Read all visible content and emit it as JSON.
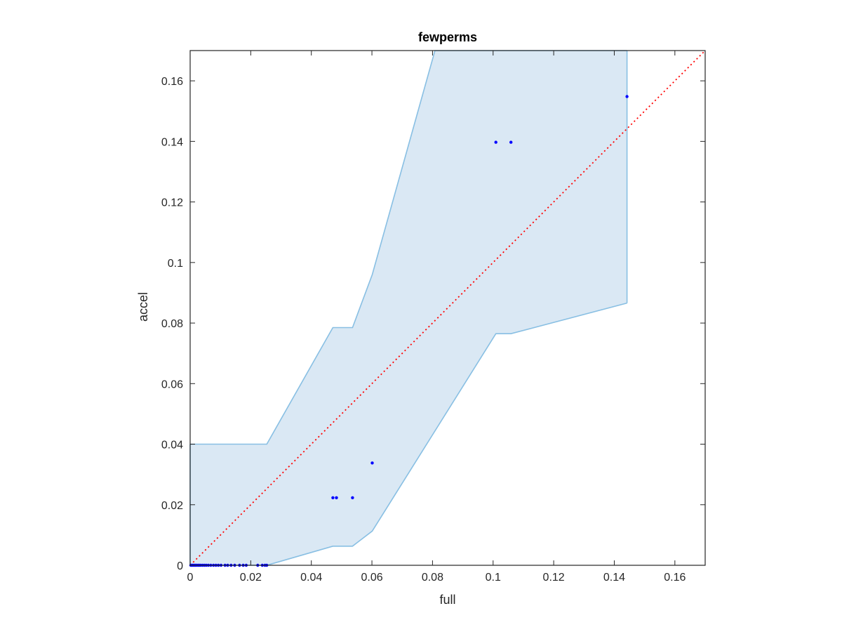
{
  "chart_data": {
    "type": "scatter",
    "title": "fewperms",
    "xlabel": "full",
    "ylabel": "accel",
    "xlim": [
      0,
      0.17
    ],
    "ylim": [
      0,
      0.17
    ],
    "grid": false,
    "x_ticks": [
      "0",
      "0.02",
      "0.04",
      "0.06",
      "0.08",
      "0.1",
      "0.12",
      "0.14",
      "0.16"
    ],
    "y_ticks": [
      "0",
      "0.02",
      "0.04",
      "0.06",
      "0.08",
      "0.1",
      "0.12",
      "0.14",
      "0.16"
    ],
    "colors": {
      "points": "#0000ff",
      "band_fill": "#dae8f4",
      "band_edge": "#88bfe3",
      "reference_line": "#ff0000",
      "axes": "#262626"
    },
    "reference_line": {
      "style": "dotted",
      "points": [
        [
          0,
          0
        ],
        [
          0.17,
          0.17
        ]
      ]
    },
    "band": {
      "upper": [
        [
          0,
          0.04
        ],
        [
          0.0253,
          0.04
        ],
        [
          0.0471,
          0.0785
        ],
        [
          0.0536,
          0.0785
        ],
        [
          0.0601,
          0.096
        ],
        [
          0.0808,
          0.17
        ],
        [
          0.1442,
          0.17
        ]
      ],
      "lower": [
        [
          0,
          0
        ],
        [
          0.0253,
          0
        ],
        [
          0.0471,
          0.0063
        ],
        [
          0.0536,
          0.0063
        ],
        [
          0.0601,
          0.0113
        ],
        [
          0.1009,
          0.0765
        ],
        [
          0.1059,
          0.0765
        ],
        [
          0.1442,
          0.0866
        ]
      ]
    },
    "series": [
      {
        "points": [
          [
            0.0002,
            0
          ],
          [
            0.0005,
            0
          ],
          [
            0.0009,
            0
          ],
          [
            0.0013,
            0
          ],
          [
            0.0017,
            0
          ],
          [
            0.0021,
            0
          ],
          [
            0.0026,
            0
          ],
          [
            0.003,
            0
          ],
          [
            0.0035,
            0
          ],
          [
            0.0041,
            0
          ],
          [
            0.0047,
            0
          ],
          [
            0.0053,
            0
          ],
          [
            0.006,
            0
          ],
          [
            0.0068,
            0
          ],
          [
            0.0077,
            0
          ],
          [
            0.0085,
            0
          ],
          [
            0.0093,
            0
          ],
          [
            0.0102,
            0
          ],
          [
            0.0115,
            0
          ],
          [
            0.0124,
            0
          ],
          [
            0.0135,
            0
          ],
          [
            0.0147,
            0
          ],
          [
            0.0163,
            0
          ],
          [
            0.0175,
            0
          ],
          [
            0.0185,
            0
          ],
          [
            0.0223,
            0
          ],
          [
            0.0238,
            0
          ],
          [
            0.0247,
            0
          ],
          [
            0.0253,
            0
          ],
          [
            0.0471,
            0.0223
          ],
          [
            0.0483,
            0.0223
          ],
          [
            0.0536,
            0.0223
          ],
          [
            0.0601,
            0.0338
          ],
          [
            0.1009,
            0.1397
          ],
          [
            0.1059,
            0.1397
          ],
          [
            0.1442,
            0.1548
          ]
        ]
      }
    ]
  }
}
